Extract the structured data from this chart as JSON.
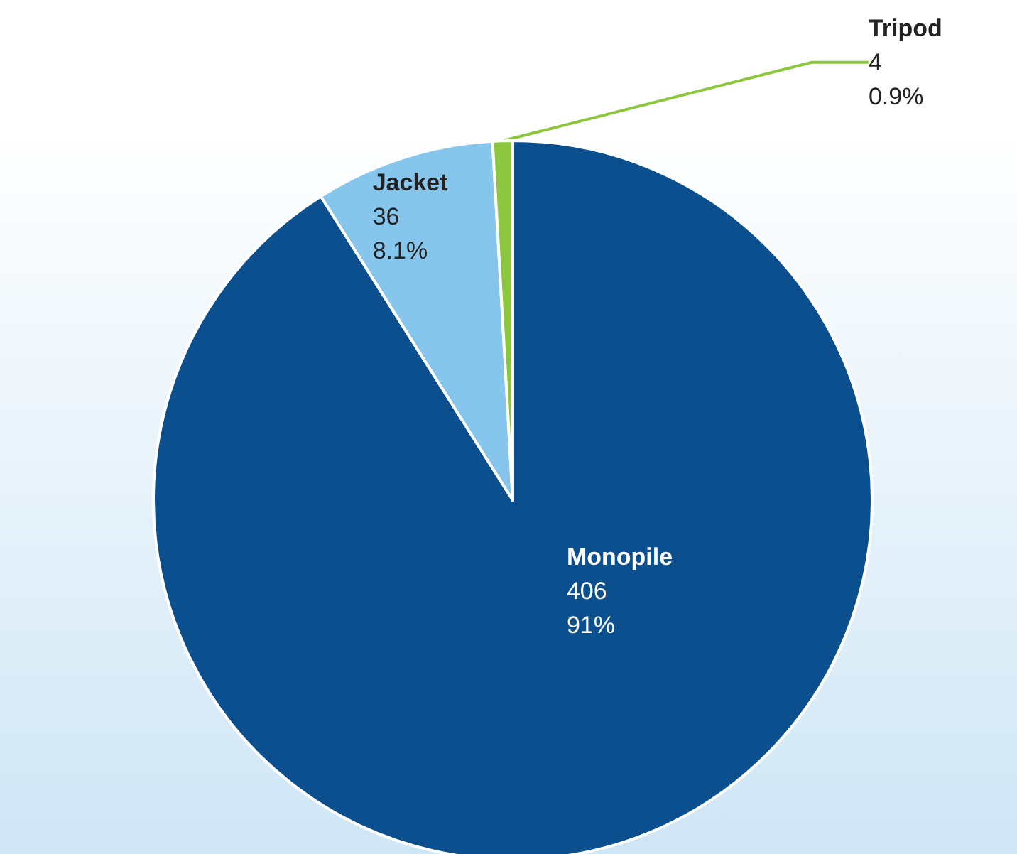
{
  "chart_data": {
    "type": "pie",
    "categories": [
      "Monopile",
      "Jacket",
      "Tripod"
    ],
    "values": [
      406,
      36,
      4
    ],
    "colors": [
      "#0b4f8e",
      "#86c5ec",
      "#8cc63e"
    ],
    "value_labels": [
      "406\n91%",
      "36\n8.1%",
      "4\n0.9%"
    ]
  }
}
